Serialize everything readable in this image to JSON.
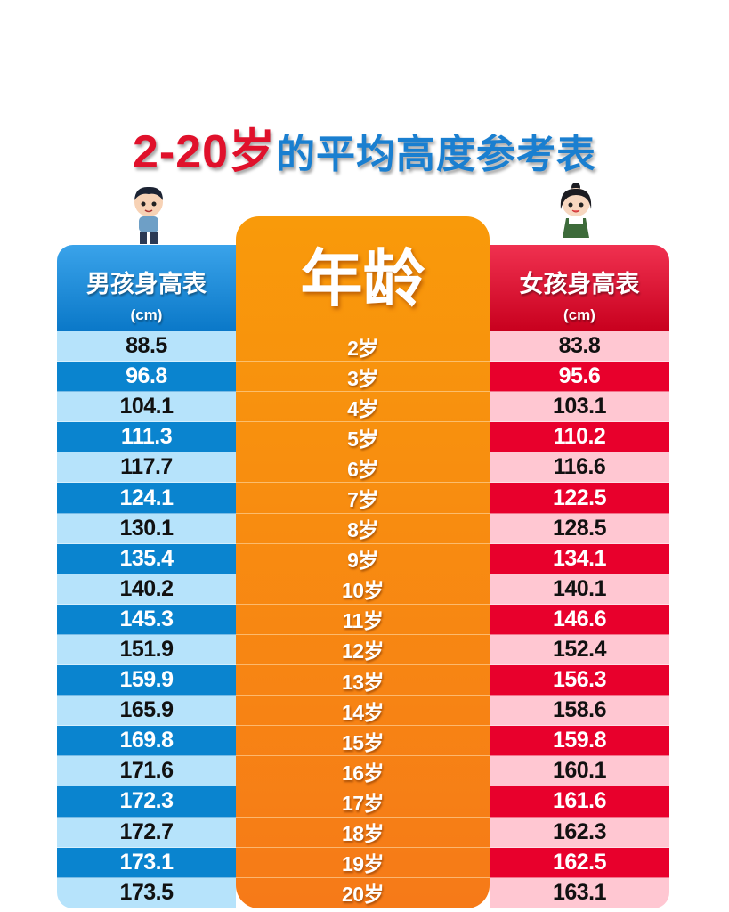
{
  "title": {
    "part1": "2-20岁",
    "part2": "的平均高度参考表"
  },
  "colors": {
    "boy_header": "#0a78c8",
    "boy_dark_row": "#0a84cf",
    "boy_light_row": "#b6e3fb",
    "age_column": "#f98c10",
    "girl_header": "#c8001e",
    "girl_dark_row": "#e8002c",
    "girl_light_row": "#ffc7d2",
    "title_red": "#e0112b",
    "title_blue": "#1a7fd0"
  },
  "icons": [
    "boy-cartoon-icon",
    "girl-cartoon-icon"
  ],
  "chart_data": {
    "type": "table",
    "title": "2-20岁的平均高度参考表",
    "columns": [
      {
        "label": "男孩身高表",
        "unit": "(cm)"
      },
      {
        "label": "年龄"
      },
      {
        "label": "女孩身高表",
        "unit": "(cm)"
      }
    ],
    "ages": [
      "2岁",
      "3岁",
      "4岁",
      "5岁",
      "6岁",
      "7岁",
      "8岁",
      "9岁",
      "10岁",
      "11岁",
      "12岁",
      "13岁",
      "14岁",
      "15岁",
      "16岁",
      "17岁",
      "18岁",
      "19岁",
      "20岁"
    ],
    "boys": [
      "88.5",
      "96.8",
      "104.1",
      "111.3",
      "117.7",
      "124.1",
      "130.1",
      "135.4",
      "140.2",
      "145.3",
      "151.9",
      "159.9",
      "165.9",
      "169.8",
      "171.6",
      "172.3",
      "172.7",
      "173.1",
      "173.5"
    ],
    "girls": [
      "83.8",
      "95.6",
      "103.1",
      "110.2",
      "116.6",
      "122.5",
      "128.5",
      "134.1",
      "140.1",
      "146.6",
      "152.4",
      "156.3",
      "158.6",
      "159.8",
      "160.1",
      "161.6",
      "162.3",
      "162.5",
      "163.1"
    ]
  }
}
